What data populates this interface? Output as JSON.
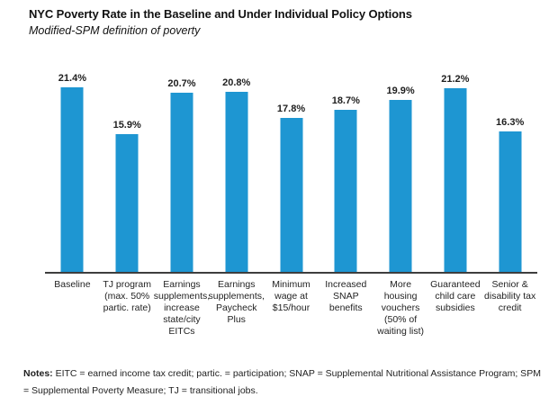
{
  "header": {
    "title": "NYC Poverty Rate in the Baseline and Under Individual Policy Options",
    "subtitle": "Modified-SPM definition of poverty"
  },
  "chart_data": {
    "type": "bar",
    "title": "NYC Poverty Rate in the Baseline and Under Individual Policy Options",
    "subtitle": "Modified-SPM definition of poverty",
    "xlabel": "",
    "ylabel": "",
    "ylim": [
      0,
      24
    ],
    "gridlines": false,
    "legend": false,
    "bar_color": "#1E96D2",
    "axis_color": "#3E3E3E",
    "categories": [
      "Baseline",
      "TJ program (max. 50% partic. rate)",
      "Earnings supplements, increase state/city EITCs",
      "Earnings supplements, Paycheck Plus",
      "Minimum wage at $15/hour",
      "Increased SNAP benefits",
      "More housing vouchers (50% of waiting list)",
      "Guaranteed child care subsidies",
      "Senior & disability tax credit"
    ],
    "category_lines": [
      "Baseline",
      "TJ program\n(max. 50%\npartic. rate)",
      "Earnings\nsupplements,\nincrease\nstate/city\nEITCs",
      "Earnings\nsupplements,\nPaycheck\nPlus",
      "Minimum\nwage at\n$15/hour",
      "Increased\nSNAP\nbenefits",
      "More\nhousing\nvouchers\n(50% of\nwaiting list)",
      "Guaranteed\nchild care\nsubsidies",
      "Senior &\ndisability tax\ncredit"
    ],
    "values": [
      21.4,
      15.9,
      20.7,
      20.8,
      17.8,
      18.7,
      19.9,
      21.2,
      16.3
    ],
    "value_labels": [
      "21.4%",
      "15.9%",
      "20.7%",
      "20.8%",
      "17.8%",
      "18.7%",
      "19.9%",
      "21.2%",
      "16.3%"
    ]
  },
  "notes": {
    "label": "Notes:",
    "text": " EITC = earned income tax credit; partic. = participation; SNAP = Supplemental Nutritional Assistance Program; SPM = Supplemental Poverty Measure; TJ = transitional jobs."
  }
}
